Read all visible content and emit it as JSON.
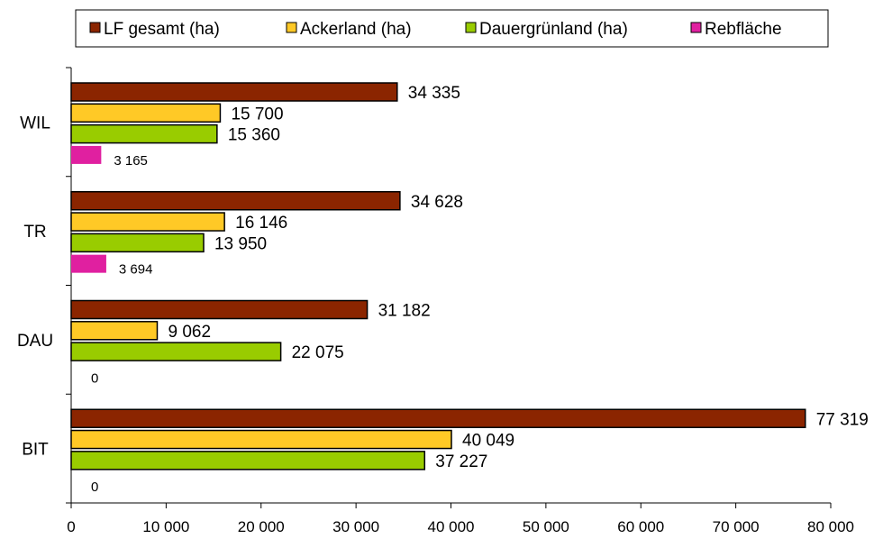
{
  "chart_data": {
    "type": "bar",
    "orientation": "horizontal",
    "title": "",
    "xlabel": "",
    "ylabel": "",
    "categories": [
      "WIL",
      "TR",
      "DAU",
      "BIT"
    ],
    "xlim": [
      0,
      80000
    ],
    "xticks": [
      0,
      10000,
      20000,
      30000,
      40000,
      50000,
      60000,
      70000,
      80000
    ],
    "xtick_labels": [
      "0",
      "10 000",
      "20 000",
      "30 000",
      "40 000",
      "50 000",
      "60 000",
      "70 000",
      "80 000"
    ],
    "grid": false,
    "legend_position": "top",
    "series": [
      {
        "name": "LF gesamt (ha)",
        "color": "#8B2500",
        "values": [
          34335,
          34628,
          31182,
          77319
        ],
        "labels": [
          "34 335",
          "34 628",
          "31 182",
          "77 319"
        ]
      },
      {
        "name": "Ackerland (ha)",
        "color": "#FFC926",
        "values": [
          15700,
          16146,
          9062,
          40049
        ],
        "labels": [
          "15 700",
          "16 146",
          "9 062",
          "40 049"
        ]
      },
      {
        "name": "Dauergrünland (ha)",
        "color": "#99CC00",
        "values": [
          15360,
          13950,
          22075,
          37227
        ],
        "labels": [
          "15 360",
          "13 950",
          "22 075",
          "37 227"
        ]
      },
      {
        "name": "Rebfläche",
        "color": "#E020A0",
        "values": [
          3165,
          3694,
          0,
          0
        ],
        "labels": [
          "3 165",
          "3 694",
          "0",
          "0"
        ]
      }
    ]
  }
}
